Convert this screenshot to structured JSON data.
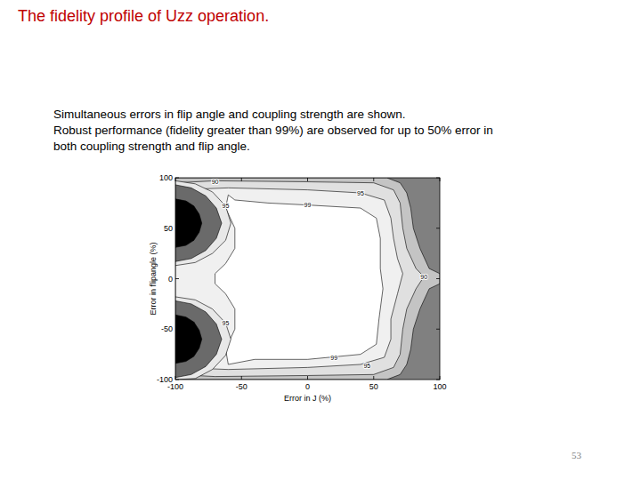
{
  "slide": {
    "title": "The fidelity profile of Uzz operation.",
    "text": [
      "Simultaneous errors in flip angle and coupling strength are shown.",
      "Robust performance (fidelity greater than 99%) are observed for up to 50% error in",
      "both coupling strength and flip angle."
    ],
    "page_number": "53"
  },
  "chart_data": {
    "type": "contour",
    "x_label": "Error in J (%)",
    "y_label": "Error in flipangle (%)",
    "xlim": [
      -100,
      100
    ],
    "ylim": [
      -100,
      100
    ],
    "xticks": [
      -100,
      -50,
      0,
      50,
      100
    ],
    "yticks": [
      -100,
      -50,
      0,
      50,
      100
    ],
    "contours": [
      {
        "color": "#808080",
        "x": [
          -100,
          100,
          100,
          -100
        ],
        "y": [
          100,
          100,
          -100,
          -100
        ]
      },
      {
        "color": "#c4c4c4",
        "x": [
          -100,
          60,
          70,
          75,
          78,
          80,
          85,
          92,
          100,
          100,
          92,
          85,
          80,
          78,
          75,
          70,
          60,
          -100
        ],
        "y": [
          100,
          100,
          95,
          85,
          70,
          50,
          30,
          10,
          5,
          -5,
          -10,
          -30,
          -50,
          -70,
          -85,
          -95,
          -100,
          -100
        ]
      },
      {
        "color": "#e0e0e0",
        "x": [
          -100,
          -70,
          0,
          50,
          65,
          70,
          72,
          75,
          82,
          88,
          82,
          75,
          72,
          70,
          65,
          50,
          0,
          -70,
          -100
        ],
        "y": [
          95,
          97,
          96,
          95,
          88,
          75,
          50,
          30,
          10,
          2,
          -10,
          -30,
          -50,
          -75,
          -88,
          -95,
          -96,
          -97,
          -95
        ]
      },
      {
        "color": "#f0f0f0",
        "x": [
          -100,
          -60,
          0,
          40,
          58,
          63,
          65,
          68,
          72,
          68,
          63,
          63,
          58,
          40,
          0,
          -60,
          -100
        ],
        "y": [
          88,
          90,
          88,
          85,
          78,
          60,
          40,
          20,
          5,
          -15,
          -40,
          -60,
          -78,
          -85,
          -88,
          -90,
          -88
        ]
      },
      {
        "color": "#ffffff",
        "x": [
          -55,
          -30,
          0,
          40,
          52,
          55,
          55,
          57,
          54,
          52,
          40,
          0,
          -40,
          -60,
          -62,
          -55,
          -55,
          -62,
          -70,
          -70,
          -62,
          -55,
          -55,
          -62,
          -60
        ],
        "y": [
          78,
          75,
          73,
          70,
          60,
          40,
          10,
          -10,
          -40,
          -65,
          -75,
          -80,
          -80,
          -85,
          -70,
          -50,
          -30,
          -15,
          -5,
          5,
          15,
          30,
          50,
          70,
          83
        ]
      },
      {
        "color": "#e8e8e8",
        "x": [
          -100,
          -85,
          -72,
          -62,
          -58,
          -62,
          -72,
          -85,
          -100
        ],
        "y": [
          97,
          94,
          86,
          72,
          55,
          38,
          25,
          16,
          13
        ]
      },
      {
        "color": "#e8e8e8",
        "x": [
          -100,
          -85,
          -72,
          -62,
          -58,
          -62,
          -72,
          -85,
          -100
        ],
        "y": [
          -18,
          -21,
          -30,
          -44,
          -60,
          -76,
          -90,
          -99,
          -100
        ]
      },
      {
        "color": "#6a6a6a",
        "x": [
          -100,
          -88,
          -77,
          -69,
          -65,
          -69,
          -77,
          -88,
          -100
        ],
        "y": [
          93,
          90,
          82,
          70,
          55,
          40,
          28,
          20,
          17
        ]
      },
      {
        "color": "#6a6a6a",
        "x": [
          -100,
          -88,
          -77,
          -69,
          -65,
          -69,
          -77,
          -88,
          -100
        ],
        "y": [
          -22,
          -25,
          -33,
          -45,
          -60,
          -75,
          -87,
          -95,
          -98
        ]
      },
      {
        "color": "#000000",
        "x": [
          -100,
          -92,
          -86,
          -82,
          -80,
          -82,
          -86,
          -92,
          -100
        ],
        "y": [
          79,
          77,
          72,
          64,
          55,
          46,
          38,
          33,
          31
        ]
      },
      {
        "color": "#000000",
        "x": [
          -100,
          -92,
          -86,
          -82,
          -80,
          -82,
          -86,
          -92,
          -100
        ],
        "y": [
          -36,
          -38,
          -43,
          -51,
          -60,
          -69,
          -77,
          -82,
          -84
        ]
      }
    ],
    "contour_labels": [
      {
        "text": "99",
        "x": 0,
        "y": 73
      },
      {
        "text": "95",
        "x": 40,
        "y": 85
      },
      {
        "text": "90",
        "x": -70,
        "y": 96
      },
      {
        "text": "99",
        "x": 20,
        "y": -78
      },
      {
        "text": "95",
        "x": 45,
        "y": -86
      },
      {
        "text": "90",
        "x": 88,
        "y": 2
      },
      {
        "text": "95",
        "x": -62,
        "y": 72
      },
      {
        "text": "95",
        "x": -62,
        "y": -44
      }
    ]
  }
}
